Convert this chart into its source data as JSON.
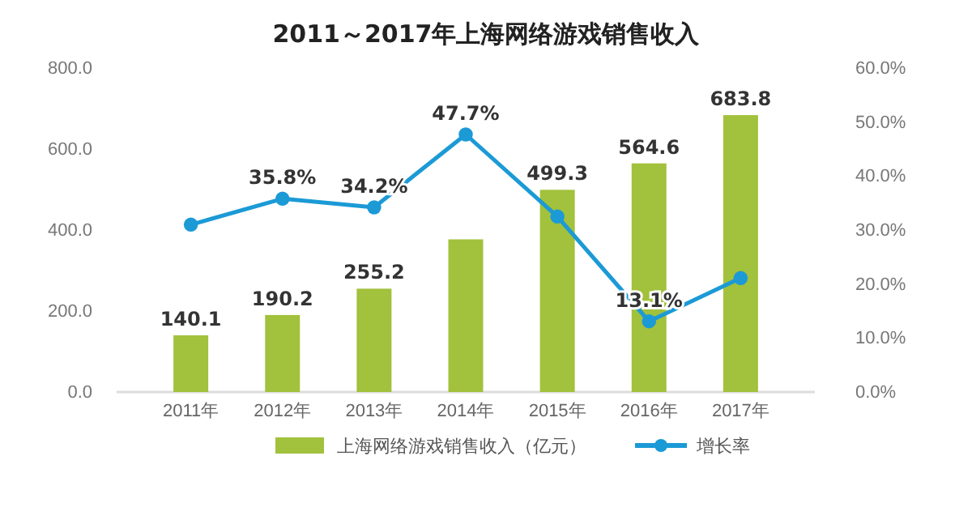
{
  "chart_data": {
    "type": "bar",
    "title": "2011～2017年上海网络游戏销售收入",
    "categories": [
      "2011年",
      "2012年",
      "2013年",
      "2014年",
      "2015年",
      "2016年",
      "2017年"
    ],
    "series": [
      {
        "name": "上海网络游戏销售收入（亿元）",
        "color": "#a2c13c",
        "values": [
          140.1,
          190.2,
          255.2,
          377,
          499.3,
          564.6,
          683.8
        ],
        "value_labels": [
          "140.1",
          "190.2",
          "255.2",
          null,
          "499.3",
          "564.6",
          "683.8"
        ]
      },
      {
        "name": "增长率",
        "type": "line",
        "axis": "y2",
        "color": "#1b9ad6",
        "marker": "circle",
        "values": [
          31,
          35.8,
          34.2,
          47.7,
          32.5,
          13.1,
          21.1
        ],
        "value_labels": [
          null,
          "35.8%",
          "34.2%",
          "47.7%",
          null,
          "13.1%",
          null
        ]
      }
    ],
    "ylim": [
      0,
      800
    ],
    "yticks": [
      {
        "value": 0,
        "label": "0.0"
      },
      {
        "value": 200,
        "label": "200.0"
      },
      {
        "value": 400,
        "label": "400.0"
      },
      {
        "value": 600,
        "label": "600.0"
      },
      {
        "value": 800,
        "label": "800.0"
      }
    ],
    "y2lim": [
      0,
      60
    ],
    "y2ticks": [
      {
        "value": 0,
        "label": "0.0%"
      },
      {
        "value": 10,
        "label": "10.0%"
      },
      {
        "value": 20,
        "label": "20.0%"
      },
      {
        "value": 30,
        "label": "30.0%"
      },
      {
        "value": 40,
        "label": "40.0%"
      },
      {
        "value": 50,
        "label": "50.0%"
      },
      {
        "value": 60,
        "label": "60.0%"
      }
    ],
    "legend": "bottom",
    "grid": false
  }
}
